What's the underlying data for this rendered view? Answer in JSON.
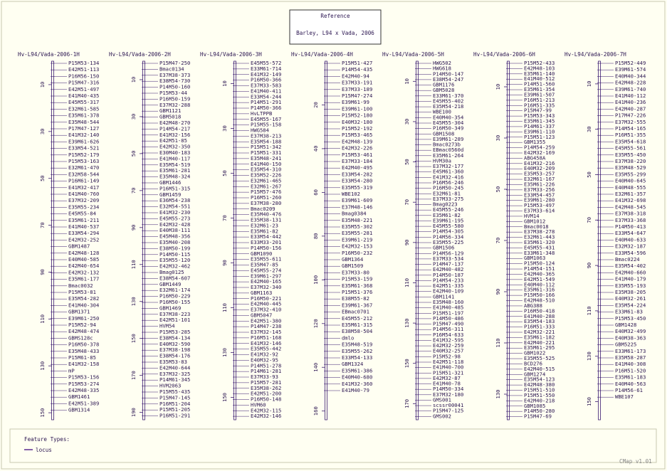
{
  "reference": {
    "title": "Reference",
    "subtitle": "Barley, L94 x Vada, 2006"
  },
  "legend": {
    "title": "Feature Types:",
    "item": "locus"
  },
  "footer": "CMap v1.01",
  "maps": [
    {
      "title": "Hv-L94/Vada-2006-1H",
      "range": [
        0,
        153
      ],
      "ticks": [
        10,
        30,
        50,
        70,
        90,
        110,
        130,
        150
      ],
      "features": [
        "P15M53-134",
        "E42M51-113",
        "P16M56-150",
        "P15M47-316",
        "E42M51-497",
        "E41M40-435",
        "E45M55-317",
        "E32M61-585",
        "E35M61-378",
        "E35M48-544",
        "P17M47-127",
        "E41M32-140",
        "E39M61-626",
        "E33M54-521",
        "P15M52-179",
        "P15M53-163",
        "E32M61-470",
        "E32M58-544",
        "P16M61-149",
        "E41M32-417",
        "E41M40-760",
        "E37M32-209",
        "E35M55-234",
        "E45M55-84",
        "E35M61-211",
        "E41M40-537",
        "E33M54-294",
        "E42M32-252",
        "GBM1487",
        "E42M48-128",
        "E40M40-585",
        "E42M40-654",
        "E42M32-132",
        "E35M61-177",
        "Bmac0032",
        "P15M53-81",
        "E35M54-282",
        "E41M40-304",
        "GBM1371",
        "E39M61-250",
        "P15M52-94",
        "E42M48-474",
        "GBMS128c",
        "P16M50-378",
        "E35M48-433",
        "P15M61-85",
        "E41M32-158",
        "mP",
        "P15M53-156",
        "P15M53-274",
        "E42M48-335",
        "GBM1461",
        "E42M51-389",
        "GBM1314"
      ]
    },
    {
      "title": "Hv-L94/Vada-2006-2H",
      "range": [
        0,
        194
      ],
      "ticks": [
        10,
        30,
        50,
        70,
        90,
        110,
        130,
        150,
        170,
        190
      ],
      "features": [
        "P15M47-250",
        "Bmac0134",
        "E37M38-373",
        "E38M54-730",
        "P14M50-160",
        "P15M53-44",
        "P16M50-159",
        "E37M32-288",
        "GBM1121",
        "GBM5018",
        "E42M48-270",
        "P14M54-217",
        "E41M32-156",
        "E42M51-85",
        "E42M32-350",
        "E30M40-183",
        "E41M40-117",
        "E35M54-519",
        "E35M61-281",
        "E35M48-324",
        "GBM1446",
        "P16M51-315",
        "GBM1459",
        "E36M54-238",
        "E32M54-551",
        "E41M32-230",
        "E45M55-273",
        "E42M32-428",
        "E40M38-111",
        "E45M48-356",
        "E35M40-208",
        "E38M50-199",
        "P14M50-115",
        "E35M55-120",
        "E42M32-462",
        "Bmag0125",
        "E38M54-607",
        "GBM1449",
        "E32M61-174",
        "P16M50-229",
        "P16M50-155",
        "GBM1469",
        "E37M38-223",
        "E42M51-101",
        "HVM54",
        "P15M53-285",
        "E38M54-134",
        "E40M32-590",
        "E37M38-198",
        "E38M54-176",
        "E35M53-83",
        "E42M40-644",
        "E37M32-325",
        "P14M61-345",
        "HVM2063",
        "P15M55-435",
        "P15M47-145",
        "P16M51-204",
        "P15M51-205",
        "P16M51-291"
      ]
    },
    {
      "title": "Hv-L94/Vada-2006-3H",
      "range": [
        0,
        160
      ],
      "ticks": [
        10,
        30,
        50,
        70,
        90,
        110,
        130,
        150
      ],
      "features": [
        "E45M55-572",
        "E33M61-714",
        "E41M32-149",
        "P16M50-366",
        "E37M33-583",
        "E41M40-411",
        "E33M54-244",
        "P14M51-291",
        "P14M50-366",
        "HvLTPPB",
        "E45M55-167",
        "P15M55-158",
        "HWG584",
        "E37M38-213",
        "E35M54-188",
        "P15M51-342",
        "P15M51-331",
        "E35M48-241",
        "E41M40-150",
        "E35M54-310",
        "E35M52-226",
        "E32M61-465",
        "E32M61-267",
        "P15M57-476",
        "P16M51-260",
        "E37M38-280",
        "Bmac0209",
        "E35M40-476",
        "E35M38-131",
        "E32M61-23",
        "E35M61-82",
        "E33M54-442",
        "E33M33-201",
        "P14M50-156",
        "GBM1090",
        "E35M55-611",
        "E35M47-85",
        "E45M55-274",
        "E39M61-297",
        "E42M40-165",
        "E37M32-340",
        "GBM1163",
        "P16M50-221",
        "E42M40-445",
        "E37M32-410",
        "GBM5047",
        "E42M51-380",
        "P14M47-238",
        "E37M32-145",
        "P16M51-168",
        "E41M32-146",
        "E35M55-442",
        "E41M32-92",
        "E40M32-95",
        "P14M51-278",
        "P14M61-281",
        "E37M33-93",
        "P15M57-281",
        "E35M38-262",
        "E42M51-200",
        "P16M50-148",
        "HVM60",
        "E42M32-115",
        "E42M32-146"
      ]
    },
    {
      "title": "Hv-L94/Vada-2006-4H",
      "range": [
        0,
        164
      ],
      "ticks": [
        20,
        40,
        60,
        80,
        100,
        120,
        140,
        160
      ],
      "features": [
        "P15M51-427",
        "P14M54-435",
        "E42M40-94",
        "E37M33-191",
        "E37M33-189",
        "P15M47-274",
        "E39M61-99",
        "E39M61-100",
        "P15M52-180",
        "E40M32-180",
        "P15M52-192",
        "P15M53-465",
        "E42M48-139",
        "E42M32-226",
        "P15M53-461",
        "E37M33-184",
        "E42M40-495",
        "E33M54-282",
        "E33M54-280",
        "E35M55-319",
        "WBE102",
        "E39M61-609",
        "E37M48-146",
        "Bmag0384",
        "E35M48-221",
        "E35M55-302",
        "E35M55-281",
        "E39M61-219",
        "E42M32-153",
        "P16M50-232",
        "GBM1364",
        "GBM1509",
        "E37M33-80",
        "P15M53-159",
        "E35M61-368",
        "P15M51-376",
        "E38M55-82",
        "E39M61-367",
        "EBmac0701",
        "E45M55-212",
        "E35M61-315",
        "E38M58-504",
        "dmlo",
        "E35M48-519",
        "E35M55-262",
        "E33M54-133",
        "GBM1324",
        "E35M61-386",
        "E40M40-680",
        "E41M32-360",
        "E41M40-79"
      ]
    },
    {
      "title": "Hv-L94/Vada-2006-5H",
      "range": [
        0,
        178
      ],
      "ticks": [
        10,
        30,
        50,
        70,
        90,
        110,
        130,
        150,
        170
      ],
      "features": [
        "HWG502",
        "HWG618",
        "P14M50-147",
        "E38M54-247",
        "GBM1176",
        "GBM5028",
        "E33M61-370",
        "E45M55-402",
        "E35M54-218",
        "WBE100",
        "E40M40-354",
        "E45M55-304",
        "P16M50-349",
        "GBM1508",
        "E39M61-289",
        "Bmac0273b",
        "EBmac0560d",
        "E35M61-264",
        "HVM30a",
        "E37M32-177",
        "E45M61-360",
        "E41M32-416",
        "P16M56-246",
        "P16M50-245",
        "E32M61-81",
        "E37M33-275",
        "Bmag0223",
        "E45M55-246",
        "E35M61-82",
        "E39M61-195",
        "E45M55-580",
        "P14M54-305",
        "P14M56-334",
        "E35M55-225",
        "GBM1506",
        "P14M56-129",
        "E37M33-534",
        "P14M47-137",
        "E42M40-482",
        "P14M50-187",
        "P14M54-233",
        "E42M51-335",
        "E42M40-109",
        "GBM1141",
        "E35M48-160",
        "E41M40-485",
        "P15M51-197",
        "P14M50-486",
        "P15M47-490",
        "P14M56-311",
        "P16M54-633",
        "E41M32-595",
        "E42M32-259",
        "E40M32-257",
        "P15M52-98",
        "E42M51-118",
        "E41M40-700",
        "P15M51-321",
        "E42M32-87",
        "E41M40-78",
        "P14M50-334",
        "E37M32-180",
        "GMS001",
        "scssr00041",
        "P15M47-125",
        "GMS002"
      ]
    },
    {
      "title": "Hv-L94/Vada-2006-6H",
      "range": [
        0,
        140
      ],
      "ticks": [
        10,
        30,
        50,
        70,
        90,
        110,
        130
      ],
      "features": [
        "P15M52-433",
        "E42M48-103",
        "E35M61-140",
        "E41M40-512",
        "P14M51-560",
        "E35M61-354",
        "E39M61-507",
        "P16M51-213",
        "P16M51-335",
        "P15M47-99",
        "P15M53-343",
        "E35M61-345",
        "P14M61-337",
        "E39M61-110",
        "P15M51-123",
        "GBM1355",
        "P14M54-259",
        "E42M32-169",
        "ABG458A",
        "E41M32-216",
        "E40M32-209",
        "E35M53-257",
        "E32M61-167",
        "E35M61-226",
        "E37M33-256",
        "E33M54-457",
        "E39M61-280",
        "P15M53-497",
        "E37M33-614",
        "HVM14",
        "GBM1012",
        "Bmac0018",
        "E37M38-278",
        "E32M61-443",
        "E35M61-320",
        "E45M55-431",
        "E33M61-348",
        "GBM1063",
        "P15M50-124",
        "P14M54-151",
        "E42M40-365",
        "E42M51-549",
        "E40M40-112",
        "E35M61-316",
        "P15M50-166",
        "E42M48-510",
        "ABG388",
        "P16M50-418",
        "E41M40-288",
        "E35M54-183",
        "P16M51-333",
        "E42M32-221",
        "E35M61-182",
        "E42M40-221",
        "E35M61-295",
        "GBM1022",
        "E35M55-525",
        "BCD276",
        "E42M40-515",
        "GBM1274",
        "E35M54-123",
        "E42M48-380",
        "P15M51-510",
        "P15M51-550",
        "E42M40-218",
        "GBM1085",
        "P14M50-280",
        "P15M47-69"
      ]
    },
    {
      "title": "Hv-L94/Vada-2006-7H",
      "range": [
        0,
        158
      ],
      "ticks": [
        10,
        30,
        50,
        70,
        90,
        110,
        130,
        150
      ],
      "features": [
        "P15M52-449",
        "E39M61-574",
        "E40M40-344",
        "E42M48-228",
        "E39M61-740",
        "E41M40-112",
        "E41M40-236",
        "E42M40-287",
        "P17M47-226",
        "E37M32-555",
        "P14M54-165",
        "P16M51-355",
        "E35M54-618",
        "E45M55-561",
        "E35M55-450",
        "E37M38-220",
        "E35M48-529",
        "E35M55-299",
        "E40M40-645",
        "E40M48-555",
        "E32M61-357",
        "E41M32-698",
        "E42M48-545",
        "E37M38-318",
        "E37M33-368",
        "P14M50-413",
        "E33M54-647",
        "E40M40-633",
        "E32M32-187",
        "E33M54-596",
        "Bmac0224",
        "E35M54-402",
        "E42M40-660",
        "E41M40-179",
        "E35M55-193",
        "E35M38-205",
        "E40M32-261",
        "E35M54-224",
        "E33M61-83",
        "P15M53-450",
        "GBM1428",
        "E40M32-499",
        "E40M38-363",
        "GBM5225",
        "E33M61-173",
        "E35M58-287",
        "E41M40-308",
        "P16M51-520",
        "E35M61-183",
        "E40M40-563",
        "P14M56-61",
        "WBE107"
      ]
    }
  ]
}
